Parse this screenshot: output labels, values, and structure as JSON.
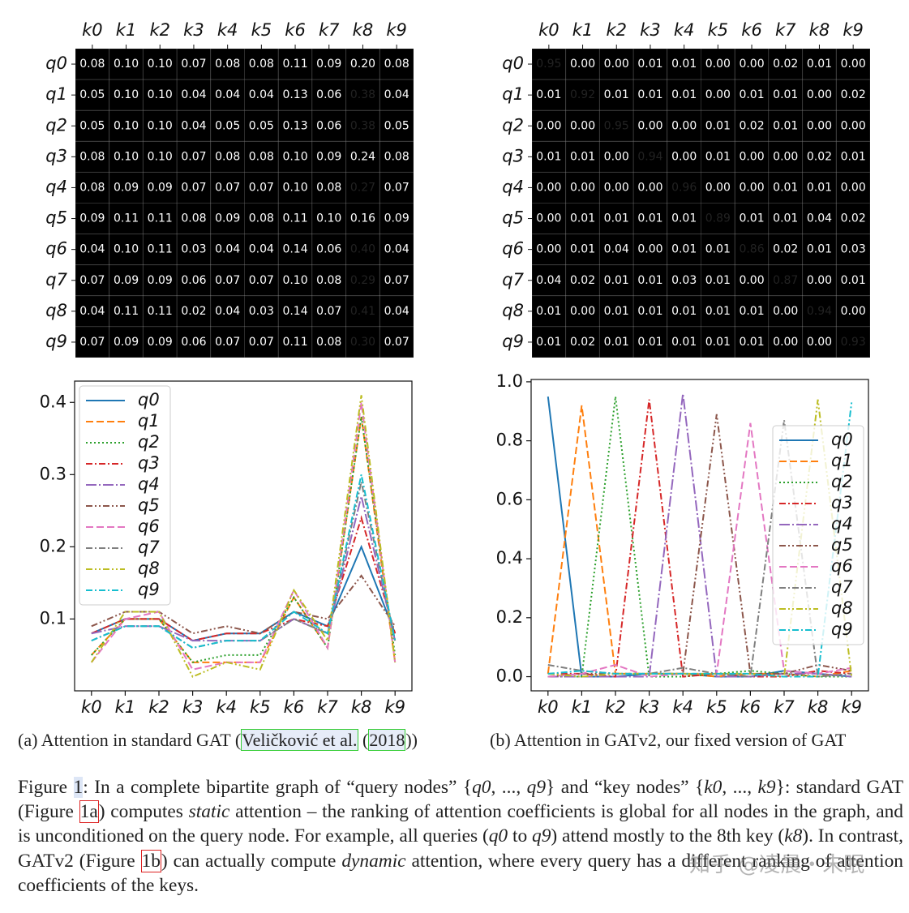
{
  "chart_data": [
    {
      "type": "heatmap",
      "colormap": "rocket",
      "x_categories": [
        "k0",
        "k1",
        "k2",
        "k3",
        "k4",
        "k5",
        "k6",
        "k7",
        "k8",
        "k9"
      ],
      "y_categories": [
        "q0",
        "q1",
        "q2",
        "q3",
        "q4",
        "q5",
        "q6",
        "q7",
        "q8",
        "q9"
      ],
      "values": [
        [
          0.08,
          0.1,
          0.1,
          0.07,
          0.08,
          0.08,
          0.11,
          0.09,
          0.2,
          0.08
        ],
        [
          0.05,
          0.1,
          0.1,
          0.04,
          0.04,
          0.04,
          0.13,
          0.06,
          0.38,
          0.04
        ],
        [
          0.05,
          0.1,
          0.1,
          0.04,
          0.05,
          0.05,
          0.13,
          0.06,
          0.38,
          0.05
        ],
        [
          0.08,
          0.1,
          0.1,
          0.07,
          0.08,
          0.08,
          0.1,
          0.09,
          0.24,
          0.08
        ],
        [
          0.08,
          0.09,
          0.09,
          0.07,
          0.07,
          0.07,
          0.1,
          0.08,
          0.27,
          0.07
        ],
        [
          0.09,
          0.11,
          0.11,
          0.08,
          0.09,
          0.08,
          0.11,
          0.1,
          0.16,
          0.09
        ],
        [
          0.04,
          0.1,
          0.11,
          0.03,
          0.04,
          0.04,
          0.14,
          0.06,
          0.4,
          0.04
        ],
        [
          0.07,
          0.09,
          0.09,
          0.06,
          0.07,
          0.07,
          0.1,
          0.08,
          0.29,
          0.07
        ],
        [
          0.04,
          0.11,
          0.11,
          0.02,
          0.04,
          0.03,
          0.14,
          0.07,
          0.41,
          0.04
        ],
        [
          0.07,
          0.09,
          0.09,
          0.06,
          0.07,
          0.07,
          0.11,
          0.08,
          0.3,
          0.07
        ]
      ],
      "value_labels": [
        [
          "0.08",
          "0.10",
          "0.10",
          "0.07",
          "0.08",
          "0.08",
          "0.11",
          "0.09",
          "0.20",
          "0.08"
        ],
        [
          "0.05",
          "0.10",
          "0.10",
          "0.04",
          "0.04",
          "0.04",
          "0.13",
          "0.06",
          "0.38",
          "0.04"
        ],
        [
          "0.05",
          "0.10",
          "0.10",
          "0.04",
          "0.05",
          "0.05",
          "0.13",
          "0.06",
          "0.38",
          "0.05"
        ],
        [
          "0.08",
          "0.10",
          "0.10",
          "0.07",
          "0.08",
          "0.08",
          "0.10",
          "0.09",
          "0.24",
          "0.08"
        ],
        [
          "0.08",
          "0.09",
          "0.09",
          "0.07",
          "0.07",
          "0.07",
          "0.10",
          "0.08",
          "0.27",
          "0.07"
        ],
        [
          "0.09",
          "0.11",
          "0.11",
          "0.08",
          "0.09",
          "0.08",
          "0.11",
          "0.10",
          "0.16",
          "0.09"
        ],
        [
          "0.04",
          "0.10",
          "0.11",
          "0.03",
          "0.04",
          "0.04",
          "0.14",
          "0.06",
          "0.40",
          "0.04"
        ],
        [
          "0.07",
          "0.09",
          "0.09",
          "0.06",
          "0.07",
          "0.07",
          "0.10",
          "0.08",
          "0.29",
          "0.07"
        ],
        [
          "0.04",
          "0.11",
          "0.11",
          "0.02",
          "0.04",
          "0.03",
          "0.14",
          "0.07",
          "0.41",
          "0.04"
        ],
        [
          "0.07",
          "0.09",
          "0.09",
          "0.06",
          "0.07",
          "0.07",
          "0.11",
          "0.08",
          "0.30",
          "0.07"
        ]
      ]
    },
    {
      "type": "heatmap",
      "colormap": "rocket",
      "x_categories": [
        "k0",
        "k1",
        "k2",
        "k3",
        "k4",
        "k5",
        "k6",
        "k7",
        "k8",
        "k9"
      ],
      "y_categories": [
        "q0",
        "q1",
        "q2",
        "q3",
        "q4",
        "q5",
        "q6",
        "q7",
        "q8",
        "q9"
      ],
      "values": [
        [
          0.95,
          0,
          0,
          0.01,
          0.01,
          0,
          0,
          0.02,
          0.01,
          0
        ],
        [
          0.01,
          0.92,
          0.01,
          0.01,
          0.01,
          0,
          0.01,
          0.01,
          0,
          0.02
        ],
        [
          0,
          0,
          0.95,
          0,
          0,
          0.01,
          0.02,
          0.01,
          0,
          0
        ],
        [
          0.01,
          0.01,
          0,
          0.94,
          0,
          0.01,
          0,
          0,
          0.02,
          0.01
        ],
        [
          0,
          0,
          0,
          0,
          0.96,
          0,
          0,
          0.01,
          0.01,
          0
        ],
        [
          0,
          0.01,
          0.01,
          0.01,
          0.01,
          0.89,
          0.01,
          0.01,
          0.04,
          0.02
        ],
        [
          0,
          0.01,
          0.04,
          0,
          0.01,
          0.01,
          0.86,
          0.02,
          0.01,
          0.03
        ],
        [
          0.04,
          0.02,
          0.01,
          0.01,
          0.03,
          0.01,
          0,
          0.87,
          0,
          0.01
        ],
        [
          0.01,
          0,
          0.01,
          0.01,
          0.01,
          0.01,
          0.01,
          0,
          0.94,
          0
        ],
        [
          0.01,
          0.02,
          0.01,
          0.01,
          0.01,
          0.01,
          0.01,
          0,
          0,
          0.93
        ]
      ],
      "value_labels": [
        [
          "0.95",
          "0.00",
          "0.00",
          "0.01",
          "0.01",
          "0.00",
          "0.00",
          "0.02",
          "0.01",
          "0.00"
        ],
        [
          "0.01",
          "0.92",
          "0.01",
          "0.01",
          "0.01",
          "0.00",
          "0.01",
          "0.01",
          "0.00",
          "0.02"
        ],
        [
          "0.00",
          "0.00",
          "0.95",
          "0.00",
          "0.00",
          "0.01",
          "0.02",
          "0.01",
          "0.00",
          "0.00"
        ],
        [
          "0.01",
          "0.01",
          "0.00",
          "0.94",
          "0.00",
          "0.01",
          "0.00",
          "0.00",
          "0.02",
          "0.01"
        ],
        [
          "0.00",
          "0.00",
          "0.00",
          "0.00",
          "0.96",
          "0.00",
          "0.00",
          "0.01",
          "0.01",
          "0.00"
        ],
        [
          "0.00",
          "0.01",
          "0.01",
          "0.01",
          "0.01",
          "0.89",
          "0.01",
          "0.01",
          "0.04",
          "0.02"
        ],
        [
          "0.00",
          "0.01",
          "0.04",
          "0.00",
          "0.01",
          "0.01",
          "0.86",
          "0.02",
          "0.01",
          "0.03"
        ],
        [
          "0.04",
          "0.02",
          "0.01",
          "0.01",
          "0.03",
          "0.01",
          "0.00",
          "0.87",
          "0.00",
          "0.01"
        ],
        [
          "0.01",
          "0.00",
          "0.01",
          "0.01",
          "0.01",
          "0.01",
          "0.01",
          "0.00",
          "0.94",
          "0.00"
        ],
        [
          "0.01",
          "0.02",
          "0.01",
          "0.01",
          "0.01",
          "0.01",
          "0.01",
          "0.00",
          "0.00",
          "0.93"
        ]
      ]
    },
    {
      "type": "line",
      "legend": "upper left",
      "categories": [
        "k0",
        "k1",
        "k2",
        "k3",
        "k4",
        "k5",
        "k6",
        "k7",
        "k8",
        "k9"
      ],
      "ylim": [
        0.0005,
        0.4295
      ],
      "yticks": [
        0.1,
        0.2,
        0.3,
        0.4
      ],
      "series": [
        {
          "name": "q0",
          "color": "#1f77b4",
          "linestyle": "solid",
          "values": [
            0.08,
            0.1,
            0.1,
            0.07,
            0.08,
            0.08,
            0.11,
            0.09,
            0.2,
            0.08
          ]
        },
        {
          "name": "q1",
          "color": "#ff7f0e",
          "linestyle": "dashed",
          "values": [
            0.05,
            0.1,
            0.1,
            0.04,
            0.04,
            0.04,
            0.13,
            0.06,
            0.38,
            0.04
          ]
        },
        {
          "name": "q2",
          "color": "#2ca02c",
          "linestyle": "dotted",
          "values": [
            0.05,
            0.1,
            0.1,
            0.04,
            0.05,
            0.05,
            0.13,
            0.06,
            0.38,
            0.05
          ]
        },
        {
          "name": "q3",
          "color": "#d62728",
          "linestyle": "dashdot",
          "values": [
            0.08,
            0.1,
            0.1,
            0.07,
            0.08,
            0.08,
            0.1,
            0.09,
            0.24,
            0.08
          ]
        },
        {
          "name": "q4",
          "color": "#9467bd",
          "linestyle": "longdashdot",
          "values": [
            0.08,
            0.09,
            0.09,
            0.07,
            0.07,
            0.07,
            0.1,
            0.08,
            0.27,
            0.07
          ]
        },
        {
          "name": "q5",
          "color": "#8c564b",
          "linestyle": "dashdotdot",
          "values": [
            0.09,
            0.11,
            0.11,
            0.08,
            0.09,
            0.08,
            0.11,
            0.1,
            0.16,
            0.09
          ]
        },
        {
          "name": "q6",
          "color": "#e377c2",
          "linestyle": "dashed",
          "values": [
            0.04,
            0.1,
            0.11,
            0.03,
            0.04,
            0.04,
            0.14,
            0.06,
            0.4,
            0.04
          ]
        },
        {
          "name": "q7",
          "color": "#7f7f7f",
          "linestyle": "dashdot",
          "values": [
            0.07,
            0.09,
            0.09,
            0.06,
            0.07,
            0.07,
            0.1,
            0.08,
            0.29,
            0.07
          ]
        },
        {
          "name": "q8",
          "color": "#bcbd22",
          "linestyle": "dashdotdot",
          "values": [
            0.04,
            0.11,
            0.11,
            0.02,
            0.04,
            0.03,
            0.14,
            0.07,
            0.41,
            0.04
          ]
        },
        {
          "name": "q9",
          "color": "#17becf",
          "linestyle": "dashdot",
          "values": [
            0.07,
            0.09,
            0.09,
            0.06,
            0.07,
            0.07,
            0.11,
            0.08,
            0.3,
            0.07
          ]
        }
      ]
    },
    {
      "type": "line",
      "legend": "center right",
      "categories": [
        "k0",
        "k1",
        "k2",
        "k3",
        "k4",
        "k5",
        "k6",
        "k7",
        "k8",
        "k9"
      ],
      "ylim": [
        -0.048,
        1.008
      ],
      "yticks": [
        {
          "value": 0,
          "label": "0.0"
        },
        0.2,
        0.4,
        0.6,
        0.8,
        {
          "value": 1,
          "label": "1.0"
        }
      ],
      "series": [
        {
          "name": "q0",
          "color": "#1f77b4",
          "linestyle": "solid",
          "values": [
            0.95,
            0,
            0,
            0.01,
            0.01,
            0,
            0,
            0.02,
            0.01,
            0
          ]
        },
        {
          "name": "q1",
          "color": "#ff7f0e",
          "linestyle": "dashed",
          "values": [
            0.01,
            0.92,
            0.01,
            0.01,
            0.01,
            0,
            0.01,
            0.01,
            0,
            0.02
          ]
        },
        {
          "name": "q2",
          "color": "#2ca02c",
          "linestyle": "dotted",
          "values": [
            0,
            0,
            0.95,
            0,
            0,
            0.01,
            0.02,
            0.01,
            0,
            0
          ]
        },
        {
          "name": "q3",
          "color": "#d62728",
          "linestyle": "dashdot",
          "values": [
            0.01,
            0.01,
            0,
            0.94,
            0,
            0.01,
            0,
            0,
            0.02,
            0.01
          ]
        },
        {
          "name": "q4",
          "color": "#9467bd",
          "linestyle": "longdashdot",
          "values": [
            0,
            0,
            0,
            0,
            0.96,
            0,
            0,
            0.01,
            0.01,
            0
          ]
        },
        {
          "name": "q5",
          "color": "#8c564b",
          "linestyle": "dashdotdot",
          "values": [
            0,
            0.01,
            0.01,
            0.01,
            0.01,
            0.89,
            0.01,
            0.01,
            0.04,
            0.02
          ]
        },
        {
          "name": "q6",
          "color": "#e377c2",
          "linestyle": "dashed",
          "values": [
            0,
            0.01,
            0.04,
            0,
            0.01,
            0.01,
            0.86,
            0.02,
            0.01,
            0.03
          ]
        },
        {
          "name": "q7",
          "color": "#7f7f7f",
          "linestyle": "dashdot",
          "values": [
            0.04,
            0.02,
            0.01,
            0.01,
            0.03,
            0.01,
            0,
            0.87,
            0,
            0.01
          ]
        },
        {
          "name": "q8",
          "color": "#bcbd22",
          "linestyle": "dashdotdot",
          "values": [
            0.01,
            0,
            0.01,
            0.01,
            0.01,
            0.01,
            0.01,
            0,
            0.94,
            0
          ]
        },
        {
          "name": "q9",
          "color": "#17becf",
          "linestyle": "dashdot",
          "values": [
            0.01,
            0.02,
            0.01,
            0.01,
            0.01,
            0.01,
            0.01,
            0,
            0,
            0.93
          ]
        }
      ]
    }
  ],
  "captions": [
    [
      "(a) Attention in standard GAT (",
      "Veličković et al.",
      " (",
      "2018",
      "))"
    ],
    [
      "(b) Attention in GATv2, our fixed version of GAT"
    ]
  ],
  "body": [
    "Figure ",
    "1",
    ": In a complete bipartite graph of “query nodes” {",
    "q0",
    ", ..., ",
    "q9",
    "} and “key nodes” {",
    "k0",
    ", ..., ",
    "k9",
    "}: standard GAT (Figure ",
    "1a",
    ") computes ",
    "static",
    " attention – the ranking of attention coefficients is global for all nodes in the graph, and is unconditioned on the query node. For example, all queries (",
    "q0",
    " to ",
    "q9",
    ") attend mostly to the 8th key (",
    "k8",
    "). In contrast, GATv2 (Figure ",
    "1b",
    ") can actually compute ",
    "dynamic",
    " attention, where every query has a different ranking of attention coefficients of the keys."
  ],
  "watermark": "知乎 @凌晨・未眠"
}
